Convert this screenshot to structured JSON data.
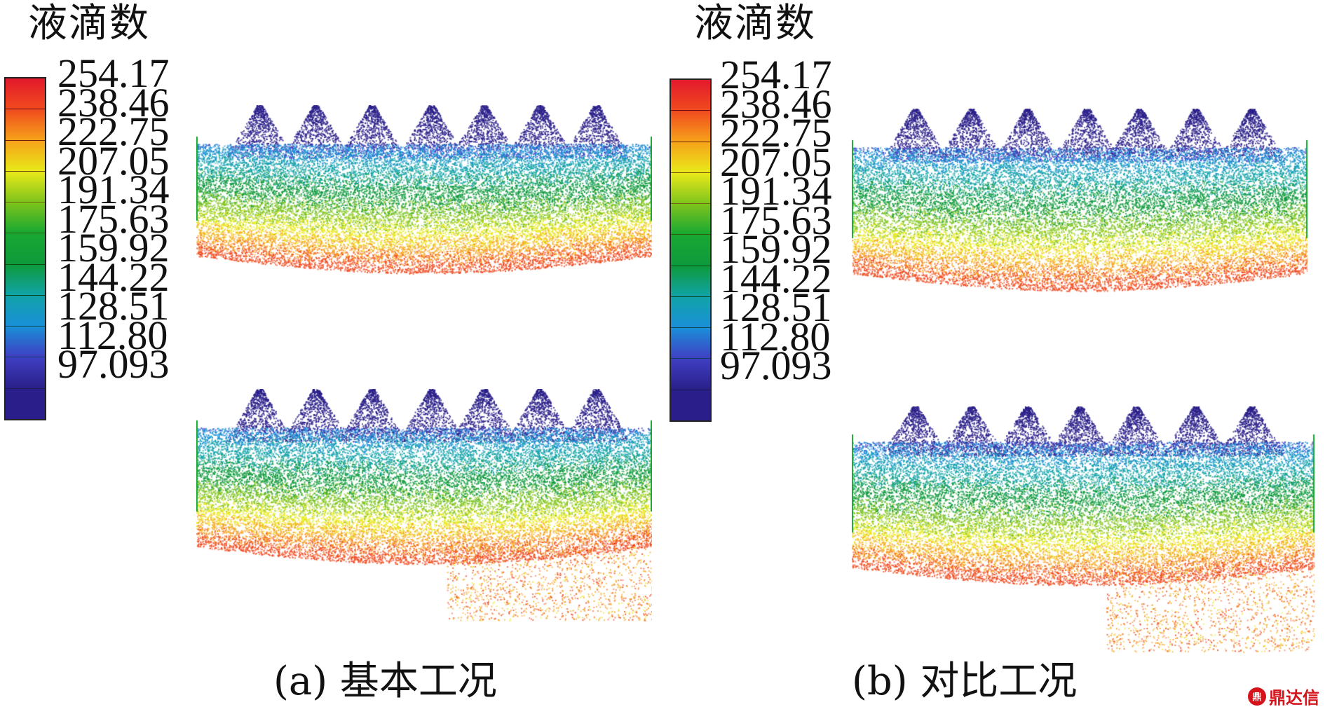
{
  "legend_left": {
    "title": "液滴数",
    "ticks": [
      "254.17",
      "238.46",
      "222.75",
      "207.05",
      "191.34",
      "175.63",
      "159.92",
      "144.22",
      "128.51",
      "112.80",
      "97.093"
    ]
  },
  "legend_right": {
    "title": "液滴数",
    "ticks": [
      "254.17",
      "238.46",
      "222.75",
      "207.05",
      "191.34",
      "175.63",
      "159.92",
      "144.22",
      "128.51",
      "112.80",
      "97.093"
    ]
  },
  "colorbar_colors": [
    "#e2192c",
    "#f04a1e",
    "#f6a21a",
    "#e9e91a",
    "#7fc41c",
    "#18a832",
    "#0e9a3c",
    "#11a3a8",
    "#1a8fd8",
    "#3f3fc2",
    "#2a1f8a"
  ],
  "captions": {
    "a": "(a) 基本工况",
    "b": "(b) 对比工况"
  },
  "watermark": {
    "logo": "鼎",
    "text": "鼎达信"
  }
}
